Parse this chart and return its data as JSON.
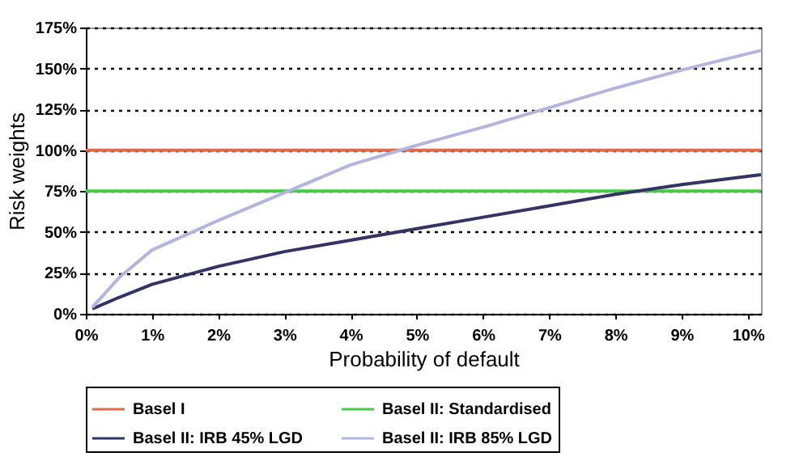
{
  "chart_data": {
    "type": "line",
    "xlabel": "Probability of default",
    "ylabel": "Risk weights",
    "xlim": [
      0,
      10.2
    ],
    "xticks": [
      {
        "value": 0,
        "label": "0%"
      },
      {
        "value": 1,
        "label": "1%"
      },
      {
        "value": 2,
        "label": "2%"
      },
      {
        "value": 3,
        "label": "3%"
      },
      {
        "value": 4,
        "label": "4%"
      },
      {
        "value": 5,
        "label": "5%"
      },
      {
        "value": 6,
        "label": "6%"
      },
      {
        "value": 7,
        "label": "7%"
      },
      {
        "value": 8,
        "label": "8%"
      },
      {
        "value": 9,
        "label": "9%"
      },
      {
        "value": 10,
        "label": "10%"
      }
    ],
    "ylim": [
      0,
      175
    ],
    "yticks": [
      {
        "value": 0,
        "label": "0%"
      },
      {
        "value": 25,
        "label": "25%"
      },
      {
        "value": 50,
        "label": "50%"
      },
      {
        "value": 75,
        "label": "75%"
      },
      {
        "value": 100,
        "label": "100%"
      },
      {
        "value": 125,
        "label": "125%"
      },
      {
        "value": 150,
        "label": "150%"
      },
      {
        "value": 175,
        "label": "175%"
      }
    ],
    "grid": "y",
    "legend": "bottom",
    "marker": "none",
    "series": [
      {
        "name": "Basel I",
        "color": "#e06a4a",
        "x": [
          0,
          10.2
        ],
        "values": [
          100,
          100
        ]
      },
      {
        "name": "Basel II: Standardised",
        "color": "#44cc44",
        "x": [
          0,
          10.2
        ],
        "values": [
          75,
          75
        ]
      },
      {
        "name": "Basel II: IRB 45% LGD",
        "color": "#333366",
        "x": [
          0.1,
          0.5,
          1,
          2,
          3,
          4,
          5,
          6,
          7,
          8,
          9,
          10,
          10.2
        ],
        "values": [
          3,
          10,
          18,
          29,
          38,
          45,
          52,
          59,
          66,
          73,
          79,
          84,
          85
        ]
      },
      {
        "name": "Basel II: IRB 85% LGD",
        "color": "#b4b4e0",
        "x": [
          0.1,
          0.5,
          1,
          2,
          3,
          4,
          5,
          6,
          7,
          8,
          9,
          10,
          10.2
        ],
        "values": [
          4,
          22,
          39,
          57,
          74,
          91,
          103,
          114,
          126,
          138,
          149,
          159,
          161
        ]
      }
    ]
  }
}
